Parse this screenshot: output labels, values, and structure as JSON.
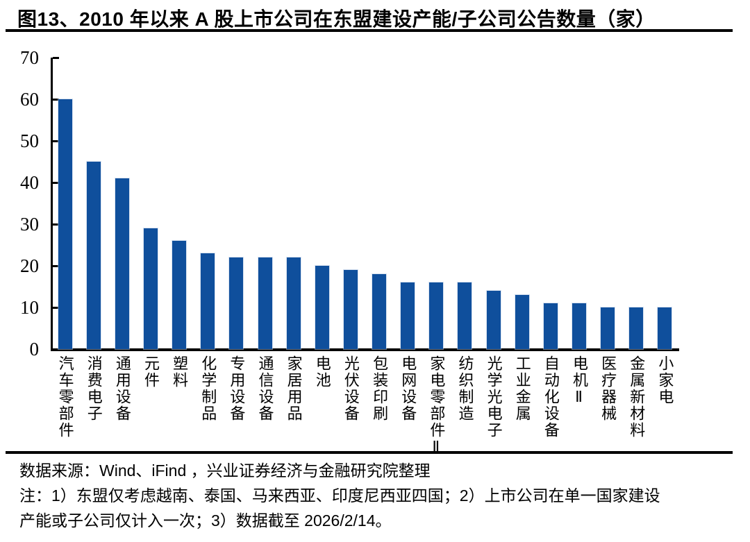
{
  "title": "图13、2010 年以来 A 股上市公司在东盟建设产能/子公司公告数量（家）",
  "chart_data": {
    "type": "bar",
    "title": "图13、2010 年以来 A 股上市公司在东盟建设产能/子公司公告数量（家）",
    "categories": [
      "汽车零部件",
      "消费电子",
      "通用设备",
      "元件",
      "塑料",
      "化学制品",
      "专用设备",
      "通信设备",
      "家居用品",
      "电池",
      "光伏设备",
      "包装印刷",
      "电网设备",
      "家电零部件Ⅱ",
      "纺织制造",
      "光学光电子",
      "工业金属",
      "自动化设备",
      "电机Ⅱ",
      "医疗器械",
      "金属新材料",
      "小家电"
    ],
    "values": [
      60,
      45,
      41,
      29,
      26,
      23,
      22,
      22,
      22,
      20,
      19,
      18,
      16,
      16,
      16,
      14,
      13,
      11,
      11,
      10,
      10,
      10
    ],
    "xlabel": "",
    "ylabel": "",
    "ylim": [
      0,
      70
    ],
    "yticks": [
      0,
      10,
      20,
      30,
      40,
      50,
      60,
      70
    ],
    "grid": false,
    "legend_position": "none",
    "bar_color": "#0F4F9C",
    "axis_color": "#000000"
  },
  "footer": {
    "source": "数据来源：Wind、iFind ，兴业证券经济与金融研究院整理",
    "note_line1": "注：1）东盟仅考虑越南、泰国、马来西亚、印度尼西亚四国；2）上市公司在单一国家建设",
    "note_line2": "产能或子公司仅计入一次；3）数据截至 2026/2/14。"
  }
}
